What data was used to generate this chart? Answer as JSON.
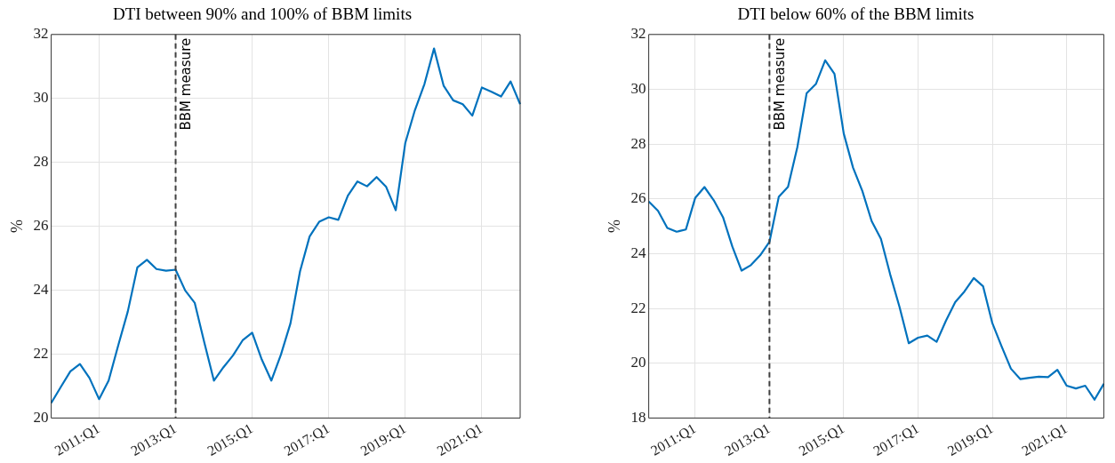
{
  "chart_data": [
    {
      "type": "line",
      "title": "DTI between 90% and 100% of BBM limits",
      "ylabel": "%",
      "categories": [
        null,
        null,
        null,
        null,
        null,
        "2011:Q1",
        null,
        null,
        null,
        null,
        null,
        null,
        null,
        "2013:Q1",
        null,
        null,
        null,
        null,
        null,
        null,
        null,
        "2015:Q1",
        null,
        null,
        null,
        null,
        null,
        null,
        null,
        "2017:Q1",
        null,
        null,
        null,
        null,
        null,
        null,
        null,
        "2019:Q1",
        null,
        null,
        null,
        null,
        null,
        null,
        null,
        "2021:Q1",
        null,
        null,
        null,
        null
      ],
      "series": [
        {
          "color": "#0072bd",
          "values": [
            20.47,
            20.97,
            21.46,
            21.69,
            21.25,
            20.59,
            21.17,
            22.27,
            23.33,
            24.71,
            24.95,
            24.66,
            24.61,
            24.64,
            23.99,
            23.6,
            22.36,
            21.17,
            21.59,
            21.96,
            22.43,
            22.67,
            21.83,
            21.17,
            21.98,
            22.96,
            24.59,
            25.68,
            26.14,
            26.28,
            26.2,
            26.96,
            27.4,
            27.25,
            27.54,
            27.23,
            26.5,
            28.61,
            29.63,
            30.45,
            31.56,
            30.4,
            29.94,
            29.82,
            29.46,
            30.34,
            30.21,
            30.06,
            30.53,
            29.82
          ]
        }
      ],
      "ylim": [
        20,
        32
      ],
      "yticks": [
        20,
        22,
        24,
        26,
        28,
        30,
        32
      ],
      "grid": true,
      "legend": false,
      "ref_lines": [
        {
          "axis": "x",
          "value": "2013:Q1",
          "label": "BBM measure",
          "color": "#404040",
          "line_style": "dashed"
        }
      ]
    },
    {
      "type": "line",
      "title": "DTI below 60% of the BBM limits",
      "ylabel": "%",
      "categories": [
        null,
        null,
        null,
        null,
        null,
        "2011:Q1",
        null,
        null,
        null,
        null,
        null,
        null,
        null,
        "2013:Q1",
        null,
        null,
        null,
        null,
        null,
        null,
        null,
        "2015:Q1",
        null,
        null,
        null,
        null,
        null,
        null,
        null,
        "2017:Q1",
        null,
        null,
        null,
        null,
        null,
        null,
        null,
        "2019:Q1",
        null,
        null,
        null,
        null,
        null,
        null,
        null,
        "2021:Q1",
        null,
        null,
        null,
        null
      ],
      "series": [
        {
          "color": "#0072bd",
          "values": [
            25.9,
            25.56,
            24.94,
            24.8,
            24.88,
            26.03,
            26.43,
            25.95,
            25.33,
            24.26,
            23.38,
            23.58,
            23.94,
            24.43,
            26.07,
            26.44,
            27.88,
            29.85,
            30.19,
            31.06,
            30.56,
            28.38,
            27.14,
            26.29,
            25.19,
            24.54,
            23.24,
            22.06,
            20.73,
            20.93,
            21.01,
            20.78,
            21.55,
            22.23,
            22.62,
            23.11,
            22.81,
            21.46,
            20.61,
            19.8,
            19.42,
            19.47,
            19.51,
            19.49,
            19.76,
            19.18,
            19.08,
            19.18,
            18.67,
            19.25
          ]
        }
      ],
      "ylim": [
        18,
        32
      ],
      "yticks": [
        18,
        20,
        22,
        24,
        26,
        28,
        30,
        32
      ],
      "grid": true,
      "legend": false,
      "ref_lines": [
        {
          "axis": "x",
          "value": "2013:Q1",
          "label": "BBM measure",
          "color": "#404040",
          "line_style": "dashed"
        }
      ]
    }
  ]
}
